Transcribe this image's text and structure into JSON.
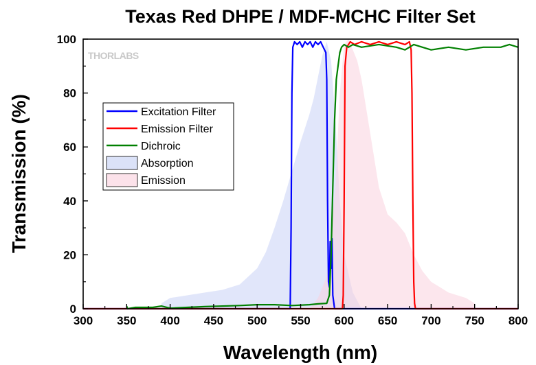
{
  "chart_data": {
    "type": "line",
    "title": "Texas Red DHPE / MDF-MCHC Filter Set",
    "xlabel": "Wavelength (nm)",
    "ylabel": "Transmission (%)",
    "xlim": [
      300,
      800
    ],
    "ylim": [
      0,
      100
    ],
    "xticks": [
      "300",
      "350",
      "400",
      "450",
      "500",
      "550",
      "600",
      "650",
      "700",
      "750",
      "800"
    ],
    "yticks": [
      "0",
      "20",
      "40",
      "60",
      "80",
      "100"
    ],
    "grid": false,
    "legend_position": "top-left",
    "watermark": "THORLABS",
    "series": [
      {
        "name": "Excitation Filter",
        "kind": "line",
        "color": "#0000ff",
        "x": [
          300,
          538,
          539,
          540,
          541,
          543,
          546,
          549,
          552,
          555,
          558,
          561,
          564,
          567,
          570,
          573,
          576,
          579,
          580,
          581,
          582,
          583,
          584,
          585,
          586,
          587,
          589,
          800
        ],
        "y": [
          0,
          0,
          30,
          80,
          97,
          99,
          98,
          99,
          97,
          99,
          98,
          99,
          97,
          99,
          98,
          99,
          97,
          95,
          85,
          40,
          10,
          8,
          25,
          15,
          26,
          5,
          0,
          0
        ]
      },
      {
        "name": "Emission Filter",
        "kind": "line",
        "color": "#ff0000",
        "x": [
          300,
          598,
          599,
          600,
          601,
          603,
          607,
          612,
          620,
          630,
          640,
          650,
          660,
          670,
          675,
          677,
          678,
          679,
          680,
          681,
          682,
          800
        ],
        "y": [
          0,
          0,
          5,
          40,
          90,
          97,
          99,
          98,
          99,
          98,
          99,
          98,
          99,
          98,
          99,
          96,
          80,
          40,
          10,
          2,
          0,
          0
        ]
      },
      {
        "name": "Dichroic",
        "kind": "line",
        "color": "#008000",
        "x": [
          350,
          351,
          360,
          370,
          380,
          390,
          400,
          420,
          440,
          460,
          480,
          500,
          520,
          540,
          560,
          570,
          580,
          583,
          585,
          587,
          589,
          591,
          593,
          595,
          597,
          600,
          605,
          610,
          620,
          640,
          660,
          670,
          680,
          690,
          700,
          720,
          740,
          760,
          780,
          790,
          800
        ],
        "y": [
          1,
          0,
          0.5,
          0.5,
          0.5,
          1,
          0.2,
          0.5,
          0.8,
          1,
          1.2,
          1.5,
          1.5,
          1.2,
          1.5,
          1.8,
          2,
          5,
          20,
          45,
          70,
          85,
          90,
          95,
          97,
          98,
          97,
          98,
          97,
          98,
          97,
          96,
          98,
          97,
          96,
          97,
          96,
          97,
          97,
          98,
          97
        ]
      },
      {
        "name": "Absorption",
        "kind": "area",
        "color": "#c8d2f5",
        "x": [
          390,
          400,
          420,
          440,
          460,
          480,
          500,
          510,
          520,
          530,
          540,
          550,
          560,
          565,
          570,
          575,
          580,
          585,
          590,
          595,
          600,
          610,
          620
        ],
        "y": [
          2,
          4,
          5,
          6,
          7,
          9,
          15,
          21,
          30,
          40,
          51,
          62,
          72,
          78,
          86,
          94,
          99,
          92,
          70,
          40,
          20,
          6,
          0
        ]
      },
      {
        "name": "Emission",
        "kind": "area",
        "color": "#fad2df",
        "x": [
          560,
          570,
          580,
          590,
          595,
          600,
          605,
          610,
          615,
          620,
          630,
          640,
          650,
          660,
          670,
          680,
          690,
          700,
          720,
          740,
          750
        ],
        "y": [
          0,
          4,
          12,
          45,
          80,
          98,
          100,
          96,
          92,
          85,
          65,
          45,
          35,
          32,
          28,
          20,
          14,
          10,
          6,
          4,
          2
        ]
      }
    ]
  }
}
